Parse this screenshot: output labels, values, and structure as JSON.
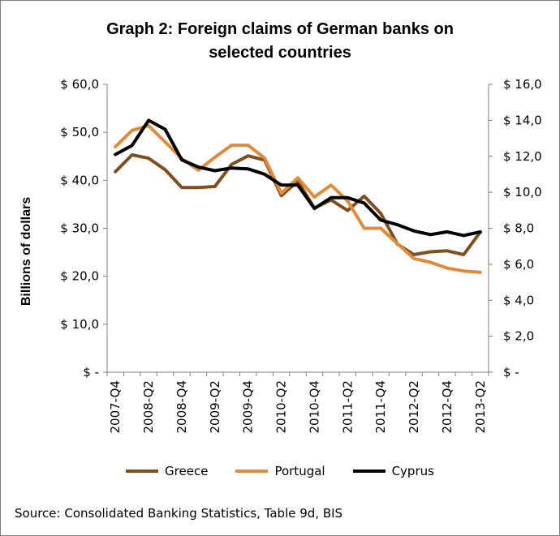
{
  "chart_data": {
    "type": "line",
    "title": "Graph 2: Foreign claims of German banks on\nselected countries",
    "ylabel": "Billions of dollars",
    "source": "Source: Consolidated Banking Statistics, Table 9d, BIS",
    "ylim_left": [
      0,
      60
    ],
    "ylim_right": [
      0,
      16
    ],
    "yticks_left": [
      "$ -",
      "$ 10,0",
      "$ 20,0",
      "$ 30,0",
      "$ 40,0",
      "$ 50,0",
      "$ 60,0"
    ],
    "yticks_right": [
      "$ -",
      "$ 2,0",
      "$ 4,0",
      "$ 6,0",
      "$ 8,0",
      "$ 10,0",
      "$ 12,0",
      "$ 14,0",
      "$ 16,0"
    ],
    "x": [
      "2007-Q4",
      "2008-Q1",
      "2008-Q2",
      "2008-Q3",
      "2008-Q4",
      "2009-Q1",
      "2009-Q2",
      "2009-Q3",
      "2009-Q4",
      "2010-Q1",
      "2010-Q2",
      "2010-Q3",
      "2010-Q4",
      "2011-Q1",
      "2011-Q2",
      "2011-Q3",
      "2011-Q4",
      "2012-Q1",
      "2012-Q2",
      "2012-Q3",
      "2012-Q4",
      "2013-Q1",
      "2013-Q2"
    ],
    "xtick_labels": [
      "2007-Q4",
      "2008-Q2",
      "2008-Q4",
      "2009-Q2",
      "2009-Q4",
      "2010-Q2",
      "2010-Q4",
      "2011-Q2",
      "2011-Q4",
      "2012-Q2",
      "2012-Q4",
      "2013-Q2"
    ],
    "legend_position": "bottom",
    "grid": false,
    "series": [
      {
        "name": "Greece",
        "axis": "left",
        "color": "#7f4f1f",
        "values": [
          41.8,
          45.3,
          44.6,
          42.2,
          38.5,
          38.5,
          38.7,
          43.3,
          45.1,
          44.2,
          36.8,
          39.8,
          34.2,
          35.9,
          33.7,
          36.7,
          33.1,
          26.7,
          24.5,
          25.1,
          25.3,
          24.5,
          29.2
        ]
      },
      {
        "name": "Portugal",
        "axis": "left",
        "color": "#e08a3c",
        "values": [
          47.0,
          50.4,
          51.4,
          48.0,
          44.5,
          42.1,
          44.8,
          47.3,
          47.3,
          44.6,
          37.3,
          40.5,
          36.5,
          39.0,
          35.7,
          30.0,
          30.0,
          26.8,
          23.7,
          22.9,
          21.7,
          21.1,
          20.8
        ]
      },
      {
        "name": "Cyprus",
        "axis": "right",
        "color": "#000000",
        "values": [
          12.1,
          12.6,
          14.0,
          13.5,
          11.8,
          11.4,
          11.2,
          11.35,
          11.3,
          11.0,
          10.4,
          10.4,
          9.1,
          9.7,
          9.7,
          9.4,
          8.45,
          8.2,
          7.85,
          7.65,
          7.8,
          7.6,
          7.8
        ]
      }
    ]
  }
}
